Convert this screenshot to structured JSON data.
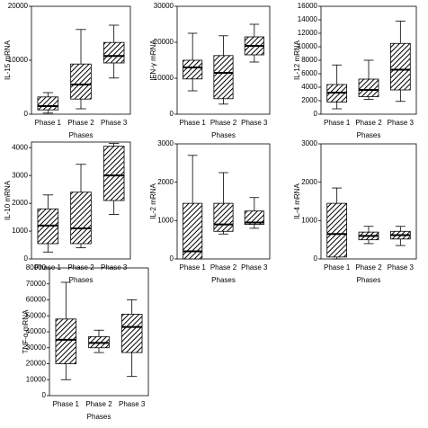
{
  "chart_data": [
    {
      "type": "box",
      "ylabel": "IL-15 mRNA",
      "xlabel": "Phases",
      "categories": [
        "Phase 1",
        "Phase 2",
        "Phase 3"
      ],
      "min": [
        200,
        1000,
        6700
      ],
      "q1": [
        800,
        2800,
        9500
      ],
      "median": [
        1500,
        5500,
        10800
      ],
      "q3": [
        3200,
        9300,
        13300
      ],
      "max": [
        4000,
        15700,
        16500
      ],
      "ylim": [
        0,
        20000
      ],
      "yticks": [
        0,
        10000,
        20000
      ]
    },
    {
      "type": "box",
      "ylabel": "IFN-γ mRNA",
      "xlabel": "Phases",
      "categories": [
        "Phase 1",
        "Phase 2",
        "Phase 3"
      ],
      "min": [
        6500,
        2800,
        14500
      ],
      "q1": [
        9800,
        4300,
        16500
      ],
      "median": [
        13000,
        11500,
        19000
      ],
      "q3": [
        15000,
        16300,
        21500
      ],
      "max": [
        22500,
        21800,
        25000
      ],
      "ylim": [
        0,
        30000
      ],
      "yticks": [
        0,
        10000,
        20000,
        30000
      ]
    },
    {
      "type": "box",
      "ylabel": "IL-12 mRNA",
      "xlabel": "Phases",
      "categories": [
        "Phase 1",
        "Phase 2",
        "Phase 3"
      ],
      "min": [
        800,
        2200,
        1900
      ],
      "q1": [
        1800,
        2600,
        3600
      ],
      "median": [
        3200,
        3600,
        6600
      ],
      "q3": [
        4400,
        5200,
        10500
      ],
      "max": [
        7300,
        8000,
        13800
      ],
      "ylim": [
        0,
        16000
      ],
      "yticks": [
        0,
        2000,
        4000,
        6000,
        8000,
        10000,
        12000,
        14000,
        16000
      ]
    },
    {
      "type": "box",
      "ylabel": "IL-10 mRNA",
      "xlabel": "Phases",
      "categories": [
        "Phase 1",
        "Phase 2",
        "Phase 3"
      ],
      "min": [
        250,
        400,
        1600
      ],
      "q1": [
        550,
        550,
        2100
      ],
      "median": [
        1200,
        1100,
        3000
      ],
      "q3": [
        1800,
        2400,
        4050
      ],
      "max": [
        2300,
        3400,
        4150
      ],
      "ylim": [
        0,
        4200
      ],
      "yticks": [
        0,
        1000,
        2000,
        3000,
        4000
      ]
    },
    {
      "type": "box",
      "ylabel": "IL-2 mRNA",
      "xlabel": "Phases",
      "categories": [
        "Phase 1",
        "Phase 2",
        "Phase 3"
      ],
      "min": [
        0,
        650,
        800
      ],
      "q1": [
        0,
        720,
        900
      ],
      "median": [
        200,
        900,
        950
      ],
      "q3": [
        1450,
        1450,
        1250
      ],
      "max": [
        2700,
        2250,
        1600
      ],
      "ylim": [
        0,
        3000
      ],
      "yticks": [
        0,
        1000,
        2000,
        3000
      ]
    },
    {
      "type": "box",
      "ylabel": "IL-4 mRNA",
      "xlabel": "Phases",
      "categories": [
        "Phase 1",
        "Phase 2",
        "Phase 3"
      ],
      "min": [
        0,
        400,
        350
      ],
      "q1": [
        50,
        500,
        520
      ],
      "median": [
        650,
        600,
        620
      ],
      "q3": [
        1450,
        700,
        720
      ],
      "max": [
        1850,
        850,
        850
      ],
      "ylim": [
        0,
        3000
      ],
      "yticks": [
        0,
        1000,
        2000,
        3000
      ]
    },
    {
      "type": "box",
      "ylabel": "TNF-α mRNA",
      "xlabel": "Phases",
      "categories": [
        "Phase 1",
        "Phase 2",
        "Phase 3"
      ],
      "min": [
        10000,
        27000,
        12000
      ],
      "q1": [
        20000,
        30000,
        27000
      ],
      "median": [
        35000,
        33000,
        43000
      ],
      "q3": [
        48000,
        37000,
        51000
      ],
      "max": [
        71000,
        41000,
        60000
      ],
      "ylim": [
        0,
        80000
      ],
      "yticks": [
        0,
        10000,
        20000,
        30000,
        40000,
        50000,
        60000,
        70000,
        80000
      ]
    }
  ]
}
